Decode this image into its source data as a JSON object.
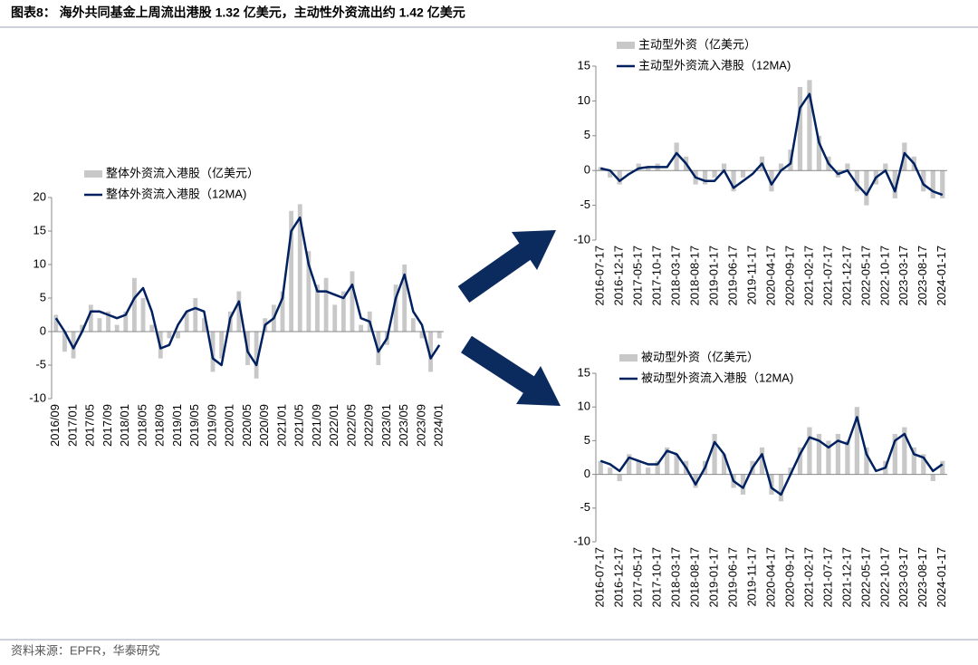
{
  "title": "图表8： 海外共同基金上周流出港股 1.32 亿美元，主动性外资流出约 1.42 亿美元",
  "source": "资料来源：EPFR，华泰研究",
  "chart_data": [
    {
      "type": "combo",
      "categories": [
        "2016/09",
        null,
        "2017/01",
        null,
        "2017/05",
        null,
        "2017/09",
        null,
        "2018/01",
        null,
        "2018/05",
        null,
        "2018/09",
        null,
        "2019/01",
        null,
        "2019/05",
        null,
        "2019/09",
        null,
        "2020/01",
        null,
        "2020/05",
        null,
        "2020/09",
        null,
        "2021/01",
        null,
        "2021/05",
        null,
        "2021/09",
        null,
        "2022/01",
        null,
        "2022/05",
        null,
        "2022/09",
        null,
        "2023/01",
        null,
        "2023/05",
        null,
        "2023/09",
        null,
        "2024/01"
      ],
      "series": [
        {
          "name": "整体外资流入港股（亿美元）",
          "type": "bar",
          "color": "#c8c8c8",
          "values": [
            2.5,
            -3,
            -4,
            1,
            4,
            2,
            3,
            1,
            3,
            8,
            5,
            1,
            -4,
            -1,
            -1,
            3,
            5,
            2,
            -6,
            -4,
            3,
            6,
            -5,
            -7,
            2,
            4,
            6,
            18,
            19,
            12,
            7,
            8,
            4,
            6,
            9,
            1,
            3,
            -5,
            -2,
            7,
            10,
            2,
            -1,
            -6,
            -1
          ]
        },
        {
          "name": "整体外资流入港股（12MA)",
          "type": "line",
          "color": "#002060",
          "values": [
            2,
            0,
            -2.5,
            0,
            3,
            3,
            2.5,
            2,
            2.5,
            5,
            6.5,
            3,
            -2.5,
            -2,
            1,
            3,
            3.5,
            3,
            -4,
            -5,
            2,
            4.5,
            -3,
            -5,
            1,
            2,
            5,
            15,
            17,
            10,
            6,
            6,
            5.5,
            5,
            7,
            2,
            1.5,
            -3,
            -1,
            5,
            8.5,
            3,
            1,
            -4,
            -2
          ]
        }
      ],
      "ylim": [
        -10,
        20
      ],
      "yticks": [
        -10,
        -5,
        0,
        5,
        10,
        15,
        20
      ]
    },
    {
      "type": "combo",
      "categories": [
        "2016-07-17",
        null,
        "2016-12-17",
        null,
        "2017-05-17",
        null,
        "2017-10-17",
        null,
        "2018-03-17",
        null,
        "2018-08-17",
        null,
        "2019-01-17",
        null,
        "2019-06-17",
        null,
        "2019-11-17",
        null,
        "2020-04-17",
        null,
        "2020-09-17",
        null,
        "2021-02-17",
        null,
        "2021-07-17",
        null,
        "2021-12-17",
        null,
        "2022-05-17",
        null,
        "2022-10-17",
        null,
        "2023-03-17",
        null,
        "2023-08-17",
        null,
        "2024-01-17"
      ],
      "series": [
        {
          "name": "主动型外资（亿美元）",
          "type": "bar",
          "color": "#c8c8c8",
          "values": [
            0.5,
            -1,
            -2,
            0,
            1,
            0.5,
            1,
            0,
            4,
            2,
            -2,
            -2,
            -1,
            1,
            -3,
            -1,
            0,
            2,
            -3,
            1,
            3,
            12,
            13,
            5,
            2,
            -1,
            1,
            -3,
            -5,
            -2,
            1,
            -4,
            4,
            2,
            -3,
            -4,
            -4
          ]
        },
        {
          "name": "主动型外资流入港股（12MA)",
          "type": "line",
          "color": "#002060",
          "values": [
            0.3,
            0,
            -1.5,
            -0.5,
            0.3,
            0.5,
            0.5,
            0.5,
            2.5,
            1,
            -1,
            -1.5,
            -1.5,
            0,
            -2.5,
            -1.5,
            -0.5,
            1,
            -2,
            0,
            1,
            9,
            11,
            4,
            1,
            -0.5,
            0,
            -2,
            -3.5,
            -1,
            0,
            -3,
            2.5,
            1,
            -2,
            -3,
            -3.5
          ]
        }
      ],
      "ylim": [
        -10,
        15
      ],
      "yticks": [
        -10,
        -5,
        0,
        5,
        10,
        15
      ]
    },
    {
      "type": "combo",
      "categories": [
        "2016-07-17",
        null,
        "2016-12-17",
        null,
        "2017-05-17",
        null,
        "2017-10-17",
        null,
        "2018-03-17",
        null,
        "2018-08-17",
        null,
        "2019-01-17",
        null,
        "2019-06-17",
        null,
        "2019-11-17",
        null,
        "2020-04-17",
        null,
        "2020-09-17",
        null,
        "2021-02-17",
        null,
        "2021-07-17",
        null,
        "2021-12-17",
        null,
        "2022-05-17",
        null,
        "2022-10-17",
        null,
        "2023-03-17",
        null,
        "2023-08-17",
        null,
        "2024-01-17"
      ],
      "series": [
        {
          "name": "被动型外资（亿美元）",
          "type": "bar",
          "color": "#c8c8c8",
          "values": [
            2,
            1,
            -1,
            3,
            2,
            1,
            2,
            4,
            3,
            2,
            -2,
            2,
            6,
            3,
            -2,
            -3,
            2,
            4,
            -3,
            -4,
            1,
            4,
            7,
            6,
            5,
            6,
            5,
            10,
            4,
            0,
            2,
            6,
            7,
            4,
            3,
            -1,
            2
          ]
        },
        {
          "name": "被动型外资流入港股（12MA)",
          "type": "line",
          "color": "#002060",
          "values": [
            2,
            1.5,
            0.5,
            2.5,
            2,
            1.5,
            1.5,
            3.5,
            3,
            1,
            -1.5,
            1,
            4.8,
            3,
            -1,
            -2,
            1,
            3,
            -2,
            -3,
            0,
            3,
            5.5,
            5,
            4,
            5,
            4.5,
            8.5,
            3,
            0.5,
            1,
            5,
            6,
            3,
            2.5,
            0.5,
            1.5
          ]
        }
      ],
      "ylim": [
        -10,
        15
      ],
      "yticks": [
        -10,
        -5,
        0,
        5,
        10,
        15
      ]
    }
  ]
}
